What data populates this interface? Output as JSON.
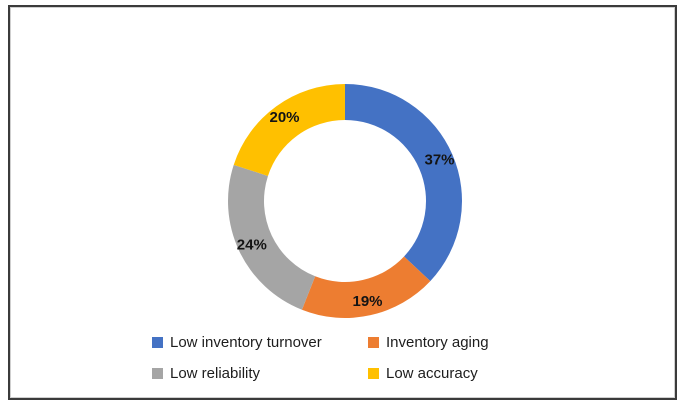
{
  "chart_data": {
    "type": "pie",
    "subtype": "donut",
    "title": "",
    "categories": [
      "Low inventory turnover",
      "Inventory aging",
      "Low reliability",
      "Low accuracy"
    ],
    "values": [
      37,
      19,
      24,
      20
    ],
    "labels": [
      "37%",
      "19%",
      "24%",
      "20%"
    ],
    "colors": [
      "#4472C4",
      "#ED7D31",
      "#A5A5A5",
      "#FFC000"
    ],
    "start_angle_deg": 0,
    "direction": "clockwise",
    "donut_hole_ratio": 0.69,
    "legend_position": "bottom",
    "data_label_color": "#141414"
  },
  "legend": {
    "items": [
      {
        "label": "Low inventory turnover",
        "color": "#4472C4"
      },
      {
        "label": "Inventory aging",
        "color": "#ED7D31"
      },
      {
        "label": "Low reliability",
        "color": "#A5A5A5"
      },
      {
        "label": "Low accuracy",
        "color": "#FFC000"
      }
    ]
  }
}
